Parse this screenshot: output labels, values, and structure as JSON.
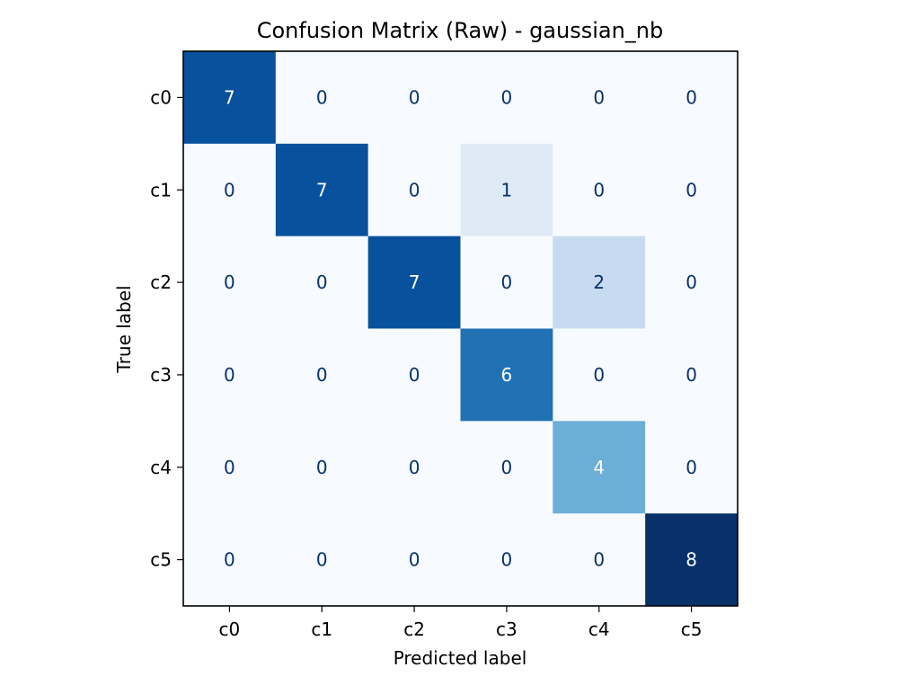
{
  "chart_data": {
    "type": "heatmap",
    "title": "Confusion Matrix (Raw) - gaussian_nb",
    "xlabel": "Predicted label",
    "ylabel": "True label",
    "x_categories": [
      "c0",
      "c1",
      "c2",
      "c3",
      "c4",
      "c5"
    ],
    "y_categories": [
      "c0",
      "c1",
      "c2",
      "c3",
      "c4",
      "c5"
    ],
    "values": [
      [
        7,
        0,
        0,
        0,
        0,
        0
      ],
      [
        0,
        7,
        0,
        1,
        0,
        0
      ],
      [
        0,
        0,
        7,
        0,
        2,
        0
      ],
      [
        0,
        0,
        0,
        6,
        0,
        0
      ],
      [
        0,
        0,
        0,
        0,
        4,
        0
      ],
      [
        0,
        0,
        0,
        0,
        0,
        8
      ]
    ],
    "vmin": 0,
    "vmax": 8,
    "colormap": "Blues",
    "grid": false,
    "colorbar": false
  }
}
